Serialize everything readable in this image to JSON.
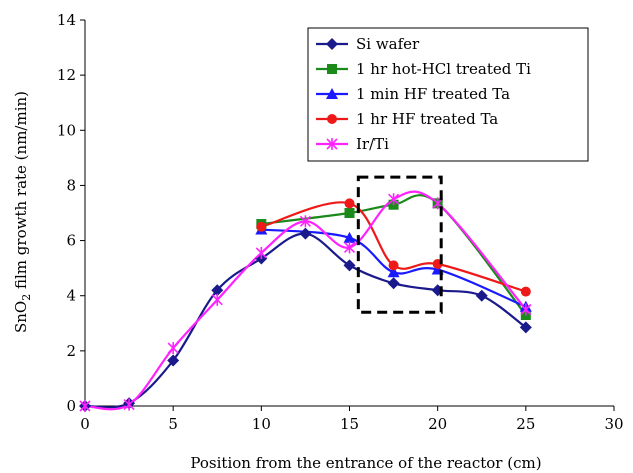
{
  "chart_data": {
    "type": "line",
    "title": "",
    "xlabel": "Position from the entrance of the reactor (cm)",
    "ylabel_main": "SnO",
    "ylabel_sub": "2",
    "ylabel_rest": " film growth rate  (nm/min)",
    "xlim": [
      0,
      30
    ],
    "ylim": [
      0,
      14
    ],
    "x_ticks": [
      "0",
      "5",
      "10",
      "15",
      "20",
      "25",
      "30"
    ],
    "y_ticks": [
      "0",
      "2",
      "4",
      "6",
      "8",
      "10",
      "12",
      "14"
    ],
    "x_tick_values": [
      0,
      5,
      10,
      15,
      20,
      25,
      30
    ],
    "y_tick_values": [
      0,
      2,
      4,
      6,
      8,
      10,
      12,
      14
    ],
    "grid": false,
    "legend_position": "top-right",
    "highlight_box": {
      "x": [
        15.5,
        20.2
      ],
      "y": [
        3.4,
        8.3
      ],
      "style": "dashed"
    },
    "series": [
      {
        "name": "Si wafer",
        "color": "#1a1a8c",
        "marker": "diamond",
        "x": [
          0,
          2.5,
          5,
          7.5,
          10,
          12.5,
          15,
          17.5,
          20,
          22.5,
          25
        ],
        "y": [
          0,
          0.1,
          1.65,
          4.2,
          5.35,
          6.25,
          5.1,
          4.45,
          4.2,
          4.0,
          2.85
        ]
      },
      {
        "name": "1 hr hot-HCl treated Ti",
        "color": "#1a8a1a",
        "marker": "square",
        "x": [
          10,
          15,
          17.5,
          20,
          25
        ],
        "y": [
          6.6,
          7.0,
          7.3,
          7.35,
          3.3
        ]
      },
      {
        "name": "1 min HF treated Ta",
        "color": "#1a1aff",
        "marker": "triangle",
        "x": [
          10,
          15,
          17.5,
          20,
          25
        ],
        "y": [
          6.4,
          6.1,
          4.85,
          4.95,
          3.6
        ]
      },
      {
        "name": "1 hr HF treated Ta",
        "color": "#ee1a1a",
        "marker": "circle",
        "x": [
          10,
          15,
          17.5,
          20,
          25
        ],
        "y": [
          6.5,
          7.35,
          5.1,
          5.15,
          4.15
        ]
      },
      {
        "name": "Ir/Ti",
        "color": "#ff22ff",
        "marker": "asterisk",
        "x": [
          0,
          2.5,
          5,
          7.5,
          10,
          12.5,
          15,
          17.5,
          20,
          25
        ],
        "y": [
          0,
          0.05,
          2.1,
          3.85,
          5.55,
          6.7,
          5.75,
          7.5,
          7.35,
          3.5
        ]
      }
    ]
  }
}
